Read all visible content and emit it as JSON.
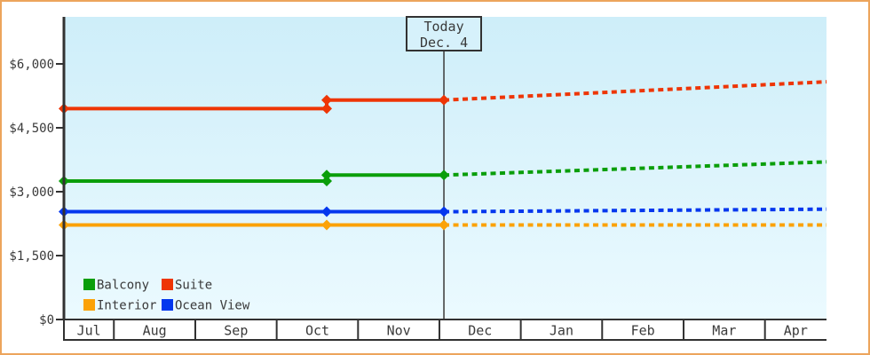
{
  "palette": {
    "frame_border": "#ECA45C",
    "plot_bg_top": "#CEEEF9",
    "plot_bg_bottom": "#EBFAFF",
    "axis": "#323232",
    "text": "#3A3A3A",
    "today_line": "#444444",
    "today_box_bg": "#D6F1FB",
    "month_cell_bg": "#FFFFFF"
  },
  "chart_data": {
    "type": "line",
    "title": "",
    "y_axis": {
      "tick_labels": [
        "$6,000",
        "$4,500",
        "$3,000",
        "$1,500",
        "$0"
      ],
      "tick_values": [
        6000,
        4500,
        3000,
        1500,
        0
      ],
      "ylim": [
        0,
        7100
      ],
      "grid": "off"
    },
    "x_axis": {
      "categories": [
        "Jul",
        "Aug",
        "Sep",
        "Oct",
        "Nov",
        "Dec",
        "Jan",
        "Feb",
        "Mar",
        "Apr"
      ],
      "boundaries_frac": [
        0,
        0.0655,
        0.1723,
        0.279,
        0.3857,
        0.4924,
        0.5991,
        0.7058,
        0.8126,
        0.9193,
        1
      ]
    },
    "today": {
      "line1": "Today",
      "line2": "Dec. 4",
      "x_frac": 0.4983
    },
    "legend": {
      "position": "bottom-left-inside",
      "rows": [
        [
          "Balcony",
          "Suite"
        ],
        [
          "Interior",
          "Ocean View"
        ]
      ]
    },
    "series": [
      {
        "name": "Balcony",
        "color": "#0A9E0A",
        "solid_points": [
          {
            "x_frac": 0.0,
            "value": 3250
          },
          {
            "x_frac": 0.3446,
            "value": 3250
          },
          {
            "x_frac": 0.3446,
            "value": 3390
          },
          {
            "x_frac": 0.4983,
            "value": 3390
          }
        ],
        "projected_points": [
          {
            "x_frac": 0.4983,
            "value": 3390
          },
          {
            "x_frac": 1.0,
            "value": 3700
          }
        ]
      },
      {
        "name": "Suite",
        "color": "#EE3505",
        "solid_points": [
          {
            "x_frac": 0.0,
            "value": 4950
          },
          {
            "x_frac": 0.3446,
            "value": 4950
          },
          {
            "x_frac": 0.3446,
            "value": 5150
          },
          {
            "x_frac": 0.4983,
            "value": 5150
          }
        ],
        "projected_points": [
          {
            "x_frac": 0.4983,
            "value": 5150
          },
          {
            "x_frac": 1.0,
            "value": 5580
          }
        ]
      },
      {
        "name": "Interior",
        "color": "#FBA208",
        "solid_points": [
          {
            "x_frac": 0.0,
            "value": 2220
          },
          {
            "x_frac": 0.3446,
            "value": 2220
          },
          {
            "x_frac": 0.4983,
            "value": 2220
          }
        ],
        "projected_points": [
          {
            "x_frac": 0.4983,
            "value": 2220
          },
          {
            "x_frac": 1.0,
            "value": 2220
          }
        ]
      },
      {
        "name": "Ocean View",
        "color": "#0437EE",
        "solid_points": [
          {
            "x_frac": 0.0,
            "value": 2530
          },
          {
            "x_frac": 0.3446,
            "value": 2530
          },
          {
            "x_frac": 0.4983,
            "value": 2530
          }
        ],
        "projected_points": [
          {
            "x_frac": 0.4983,
            "value": 2530
          },
          {
            "x_frac": 1.0,
            "value": 2590
          }
        ]
      }
    ]
  }
}
